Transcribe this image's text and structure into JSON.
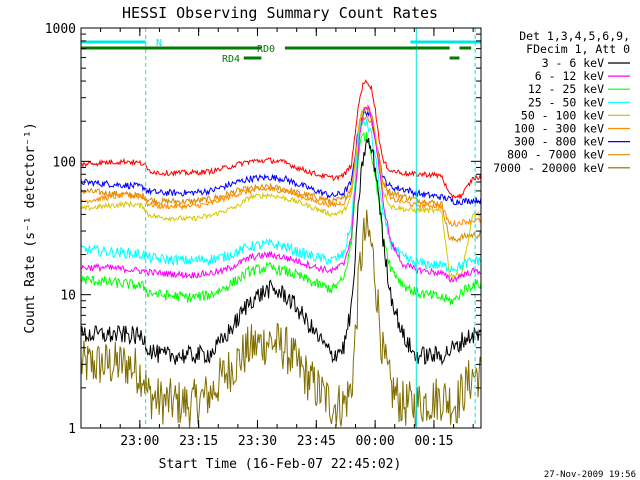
{
  "chart_data": {
    "type": "line",
    "title": "HESSI Observing Summary Count Rates",
    "xlabel": "Start Time (16-Feb-07 22:45:02)",
    "ylabel": "Count Rate (s⁻¹ detector⁻¹)",
    "y_scale": "log",
    "ylim": [
      1,
      1000
    ],
    "xlim": [
      0,
      102
    ],
    "x_unit": "minutes from 22:45:02",
    "x_ticks": [
      {
        "label": "23:00",
        "x": 15
      },
      {
        "label": "23:15",
        "x": 30
      },
      {
        "label": "23:30",
        "x": 45
      },
      {
        "label": "23:45",
        "x": 60
      },
      {
        "label": "00:00",
        "x": 75
      },
      {
        "label": "00:15",
        "x": 90
      }
    ],
    "y_ticks": [
      {
        "label": "1",
        "y": 1
      },
      {
        "label": "10",
        "y": 10
      },
      {
        "label": "100",
        "y": 100
      },
      {
        "label": "1000",
        "y": 1000
      }
    ],
    "legend_header": [
      "Det 1,3,4,5,6,9,",
      "FDecim 1, Att 0"
    ],
    "legend_position": "right",
    "timestamp": "27-Nov-2009 19:56",
    "flag_bars": [
      {
        "label": "N",
        "color": "#00e5e5",
        "segments": [
          [
            0,
            16.5
          ],
          [
            84,
            102
          ]
        ]
      },
      {
        "label": "RD0",
        "color": "#007a00",
        "segments": [
          [
            0,
            46
          ],
          [
            52,
            94
          ],
          [
            96.5,
            99.5
          ]
        ]
      },
      {
        "label": "RD4",
        "color": "#007a00",
        "segments": [
          [
            41.5,
            46
          ],
          [
            94,
            96.5
          ]
        ]
      }
    ],
    "markers": [
      {
        "x": 0,
        "color": "#00e5e5",
        "style": "solid"
      },
      {
        "x": 16.5,
        "color": "#00e5e5",
        "style": "dashed"
      },
      {
        "x": 85.5,
        "color": "#00e5e5",
        "style": "solid"
      },
      {
        "x": 100.5,
        "color": "#00e5e5",
        "style": "dashed"
      }
    ],
    "x": [
      0,
      6,
      12,
      16,
      17,
      20,
      28,
      33,
      36,
      40,
      43,
      48,
      52,
      55,
      60,
      64,
      67,
      69,
      70,
      71,
      72,
      73,
      74,
      75,
      76,
      77,
      79,
      82,
      84,
      85,
      88,
      92,
      94,
      95,
      96,
      97,
      100,
      102
    ],
    "series": [
      {
        "name": "3 - 6 keV",
        "color": "#000000",
        "noise": 0.07,
        "values": [
          5,
          5,
          5,
          4.8,
          4,
          3.5,
          3.5,
          3.6,
          4.5,
          6.5,
          9,
          11,
          10,
          8,
          5,
          3.5,
          4,
          8,
          20,
          60,
          110,
          140,
          125,
          90,
          55,
          25,
          10,
          5,
          4,
          3.5,
          3.5,
          3.5,
          3.8,
          4,
          4,
          4.5,
          5,
          5
        ]
      },
      {
        "name": "6 - 12 keV",
        "color": "#ff00ff",
        "noise": 0.025,
        "values": [
          16,
          16,
          15.5,
          15,
          14.8,
          14.5,
          14,
          14.5,
          15,
          17,
          19,
          20,
          19,
          18,
          16,
          15,
          17,
          28,
          65,
          150,
          230,
          260,
          220,
          150,
          90,
          50,
          25,
          17,
          16,
          15.5,
          15,
          14.5,
          13,
          13,
          13.5,
          14,
          15,
          15
        ]
      },
      {
        "name": "12 - 25 keV",
        "color": "#00ff00",
        "noise": 0.04,
        "values": [
          13,
          12.5,
          12,
          11.5,
          10.5,
          10,
          9.5,
          10,
          11,
          13,
          15,
          16,
          15,
          14,
          12,
          11,
          13,
          25,
          60,
          130,
          160,
          150,
          120,
          80,
          50,
          28,
          16,
          12,
          11,
          10.5,
          10,
          9.5,
          9,
          9,
          9.5,
          10.5,
          12,
          12
        ]
      },
      {
        "name": "25 - 50 keV",
        "color": "#00ffff",
        "noise": 0.04,
        "values": [
          22,
          21,
          20.5,
          20,
          19,
          18.5,
          18,
          18.5,
          19,
          21,
          23,
          24,
          23,
          21,
          19,
          18,
          20,
          35,
          80,
          170,
          200,
          190,
          160,
          110,
          70,
          40,
          24,
          19,
          18,
          17.5,
          17,
          16.5,
          16,
          16,
          16,
          16.5,
          18,
          18
        ]
      },
      {
        "name": "50 - 100 keV",
        "color": "#d6c800",
        "noise": 0.02,
        "values": [
          44,
          46,
          48,
          46,
          40,
          38,
          37,
          39,
          42,
          46,
          54,
          56,
          53,
          50,
          44,
          40,
          42,
          55,
          100,
          190,
          240,
          250,
          220,
          160,
          100,
          60,
          46,
          44,
          43,
          43,
          43,
          42,
          14,
          14,
          14,
          14,
          40,
          40
        ]
      },
      {
        "name": "100 - 300 keV",
        "color": "#ff8c00",
        "noise": 0.02,
        "values": [
          50,
          53,
          56,
          54,
          48,
          46,
          46,
          48,
          52,
          57,
          60,
          62,
          60,
          56,
          50,
          47,
          49,
          60,
          110,
          200,
          250,
          255,
          230,
          170,
          110,
          70,
          52,
          50,
          48,
          47,
          47,
          46,
          34,
          34,
          34,
          35,
          36,
          36
        ]
      },
      {
        "name": "300 - 800 keV",
        "color": "#0000ff",
        "noise": 0.025,
        "values": [
          70,
          68,
          66,
          64,
          60,
          58,
          58,
          60,
          64,
          70,
          74,
          76,
          74,
          68,
          60,
          55,
          58,
          70,
          120,
          200,
          230,
          235,
          215,
          160,
          110,
          75,
          64,
          62,
          60,
          58,
          56,
          54,
          52,
          50,
          50,
          50,
          51,
          51
        ]
      },
      {
        "name": "800 - 7000 keV",
        "color": "#d98c00",
        "noise": 0.025,
        "values": [
          60,
          58,
          56,
          55,
          52,
          50,
          50,
          52,
          55,
          60,
          62,
          64,
          62,
          58,
          54,
          50,
          52,
          64,
          110,
          180,
          210,
          215,
          195,
          150,
          100,
          70,
          58,
          55,
          53,
          52,
          50,
          48,
          26,
          26,
          26,
          27,
          28,
          28
        ]
      },
      {
        "name": "7000 - 20000 keV",
        "color": "#806e00",
        "noise": 0.18,
        "values": [
          3,
          3,
          3,
          2.5,
          1.8,
          1.6,
          1.5,
          1.8,
          2.4,
          3.2,
          4,
          4.5,
          4,
          3,
          2,
          1.5,
          1.5,
          2,
          5,
          15,
          26,
          30,
          24,
          14,
          7,
          3.5,
          2,
          1.5,
          1.5,
          1.5,
          1.6,
          1.7,
          1.6,
          1.5,
          1.6,
          1.8,
          2.5,
          2.5
        ]
      }
    ],
    "top_envelope": {
      "name": "",
      "color": "#ff0000",
      "noise": 0.02,
      "values": [
        95,
        98,
        100,
        96,
        86,
        82,
        82,
        84,
        88,
        95,
        100,
        102,
        98,
        90,
        80,
        75,
        78,
        95,
        170,
        300,
        380,
        400,
        360,
        250,
        150,
        100,
        85,
        82,
        80,
        80,
        80,
        78,
        55,
        55,
        55,
        55,
        75,
        75
      ]
    }
  }
}
